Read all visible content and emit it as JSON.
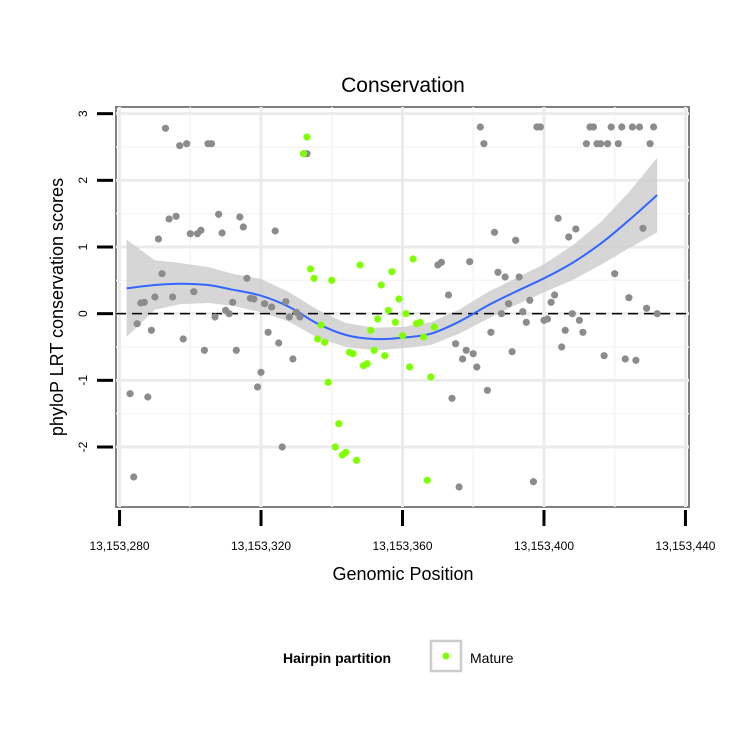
{
  "chart_data": {
    "type": "scatter",
    "title": "Conservation",
    "xlabel": "Genomic Position",
    "ylabel": "phyloP LRT conservation scores",
    "xlim": [
      13153279,
      13153441
    ],
    "ylim": [
      -2.9,
      3.1
    ],
    "x_ticks": [
      13153280,
      13153320,
      13153360,
      13153400,
      13153440
    ],
    "x_tick_labels": [
      "13,153,280",
      "13,153,320",
      "13,153,360",
      "13,153,400",
      "13,153,440"
    ],
    "y_ticks": [
      -2,
      -1,
      0,
      1,
      2,
      3
    ],
    "y_tick_labels": [
      "-2",
      "-1",
      "0",
      "1",
      "2",
      "3"
    ],
    "grid": true,
    "reference_line": {
      "y": 0,
      "style": "dashed"
    },
    "legend": {
      "title": "Hairpin partition",
      "entries": [
        {
          "label": "Mature",
          "color": "#80ff00"
        }
      ],
      "position": "bottom"
    },
    "colors": {
      "other": "#8c8c8c",
      "mature": "#80ff00",
      "smooth": "#3366ff",
      "ribbon": "#cccccc"
    },
    "series": [
      {
        "name": "Other",
        "points": [
          [
            13153283,
            -1.2
          ],
          [
            13153284,
            -2.45
          ],
          [
            13153285,
            -0.15
          ],
          [
            13153286,
            0.16
          ],
          [
            13153287,
            0.17
          ],
          [
            13153288,
            -1.25
          ],
          [
            13153289,
            -0.25
          ],
          [
            13153290,
            0.25
          ],
          [
            13153291,
            1.12
          ],
          [
            13153292,
            0.6
          ],
          [
            13153293,
            2.78
          ],
          [
            13153294,
            1.42
          ],
          [
            13153295,
            0.25
          ],
          [
            13153296,
            1.46
          ],
          [
            13153297,
            2.52
          ],
          [
            13153298,
            -0.38
          ],
          [
            13153299,
            2.55
          ],
          [
            13153300,
            1.2
          ],
          [
            13153301,
            0.33
          ],
          [
            13153302,
            1.2
          ],
          [
            13153303,
            1.25
          ],
          [
            13153304,
            -0.55
          ],
          [
            13153305,
            2.55
          ],
          [
            13153306,
            2.55
          ],
          [
            13153307,
            -0.05
          ],
          [
            13153308,
            1.49
          ],
          [
            13153309,
            1.21
          ],
          [
            13153310,
            0.05
          ],
          [
            13153311,
            0.0
          ],
          [
            13153312,
            0.17
          ],
          [
            13153313,
            -0.55
          ],
          [
            13153314,
            1.45
          ],
          [
            13153315,
            1.3
          ],
          [
            13153316,
            0.53
          ],
          [
            13153317,
            0.23
          ],
          [
            13153318,
            0.22
          ],
          [
            13153319,
            -1.1
          ],
          [
            13153320,
            -0.88
          ],
          [
            13153321,
            0.15
          ],
          [
            13153322,
            -0.28
          ],
          [
            13153323,
            0.1
          ],
          [
            13153324,
            1.24
          ],
          [
            13153325,
            -0.44
          ],
          [
            13153326,
            -2.0
          ],
          [
            13153327,
            0.18
          ],
          [
            13153328,
            -0.05
          ],
          [
            13153329,
            -0.68
          ],
          [
            13153330,
            0.02
          ],
          [
            13153331,
            -0.05
          ],
          [
            13153332,
            2.4
          ],
          [
            13153333,
            2.4
          ],
          [
            13153370,
            0.73
          ],
          [
            13153371,
            0.77
          ],
          [
            13153373,
            0.28
          ],
          [
            13153374,
            -1.27
          ],
          [
            13153375,
            -0.45
          ],
          [
            13153376,
            -2.6
          ],
          [
            13153377,
            -0.68
          ],
          [
            13153378,
            -0.55
          ],
          [
            13153379,
            0.78
          ],
          [
            13153380,
            -0.6
          ],
          [
            13153381,
            -0.8
          ],
          [
            13153382,
            2.8
          ],
          [
            13153383,
            2.55
          ],
          [
            13153384,
            -1.15
          ],
          [
            13153385,
            -0.28
          ],
          [
            13153386,
            1.22
          ],
          [
            13153387,
            0.62
          ],
          [
            13153388,
            0.0
          ],
          [
            13153389,
            0.55
          ],
          [
            13153390,
            0.15
          ],
          [
            13153391,
            -0.57
          ],
          [
            13153392,
            1.1
          ],
          [
            13153393,
            0.55
          ],
          [
            13153394,
            0.03
          ],
          [
            13153395,
            -0.13
          ],
          [
            13153396,
            0.2
          ],
          [
            13153397,
            -2.52
          ],
          [
            13153398,
            2.8
          ],
          [
            13153399,
            2.8
          ],
          [
            13153400,
            -0.1
          ],
          [
            13153401,
            -0.08
          ],
          [
            13153402,
            0.17
          ],
          [
            13153403,
            0.28
          ],
          [
            13153404,
            1.43
          ],
          [
            13153405,
            -0.5
          ],
          [
            13153406,
            -0.25
          ],
          [
            13153407,
            1.15
          ],
          [
            13153408,
            0.0
          ],
          [
            13153409,
            1.27
          ],
          [
            13153410,
            -0.1
          ],
          [
            13153411,
            -0.28
          ],
          [
            13153412,
            2.55
          ],
          [
            13153413,
            2.8
          ],
          [
            13153414,
            2.8
          ],
          [
            13153415,
            2.55
          ],
          [
            13153416,
            2.55
          ],
          [
            13153417,
            -0.63
          ],
          [
            13153418,
            2.55
          ],
          [
            13153419,
            2.8
          ],
          [
            13153420,
            0.6
          ],
          [
            13153421,
            2.55
          ],
          [
            13153422,
            2.8
          ],
          [
            13153423,
            -0.68
          ],
          [
            13153424,
            0.24
          ],
          [
            13153425,
            2.8
          ],
          [
            13153426,
            -0.7
          ],
          [
            13153427,
            2.8
          ],
          [
            13153428,
            1.28
          ],
          [
            13153429,
            0.08
          ],
          [
            13153430,
            2.55
          ],
          [
            13153431,
            2.8
          ],
          [
            13153432,
            0.0
          ]
        ]
      },
      {
        "name": "Mature",
        "points": [
          [
            13153332,
            2.4
          ],
          [
            13153333,
            2.65
          ],
          [
            13153334,
            0.67
          ],
          [
            13153335,
            0.53
          ],
          [
            13153336,
            -0.38
          ],
          [
            13153337,
            -0.17
          ],
          [
            13153338,
            -0.43
          ],
          [
            13153339,
            -1.03
          ],
          [
            13153340,
            0.5
          ],
          [
            13153341,
            -2.0
          ],
          [
            13153342,
            -1.65
          ],
          [
            13153343,
            -2.12
          ],
          [
            13153344,
            -2.08
          ],
          [
            13153345,
            -0.58
          ],
          [
            13153346,
            -0.6
          ],
          [
            13153347,
            -2.2
          ],
          [
            13153348,
            0.73
          ],
          [
            13153349,
            -0.78
          ],
          [
            13153350,
            -0.75
          ],
          [
            13153351,
            -0.25
          ],
          [
            13153352,
            -0.55
          ],
          [
            13153353,
            -0.08
          ],
          [
            13153354,
            0.43
          ],
          [
            13153355,
            -0.63
          ],
          [
            13153356,
            0.05
          ],
          [
            13153357,
            0.63
          ],
          [
            13153358,
            -0.13
          ],
          [
            13153359,
            0.22
          ],
          [
            13153360,
            -0.33
          ],
          [
            13153361,
            0.0
          ],
          [
            13153362,
            -0.8
          ],
          [
            13153363,
            0.82
          ],
          [
            13153364,
            -0.15
          ],
          [
            13153365,
            -0.13
          ],
          [
            13153366,
            -0.35
          ],
          [
            13153367,
            -2.5
          ],
          [
            13153368,
            -0.95
          ],
          [
            13153369,
            -0.2
          ]
        ]
      }
    ],
    "smooth": {
      "name": "Loess fit",
      "x": [
        13153282,
        13153290,
        13153297,
        13153305,
        13153312,
        13153320,
        13153328,
        13153336,
        13153344,
        13153352,
        13153360,
        13153368,
        13153376,
        13153384,
        13153392,
        13153400,
        13153408,
        13153416,
        13153424,
        13153432
      ],
      "y": [
        0.38,
        0.43,
        0.45,
        0.43,
        0.36,
        0.27,
        0.1,
        -0.15,
        -0.32,
        -0.38,
        -0.36,
        -0.3,
        -0.12,
        0.12,
        0.33,
        0.53,
        0.76,
        1.05,
        1.4,
        1.78
      ],
      "ci_lower": [
        -0.35,
        0.06,
        0.14,
        0.16,
        0.12,
        0.02,
        -0.12,
        -0.36,
        -0.5,
        -0.55,
        -0.52,
        -0.47,
        -0.3,
        -0.08,
        0.13,
        0.32,
        0.5,
        0.73,
        0.98,
        1.22
      ],
      "ci_upper": [
        1.11,
        0.8,
        0.76,
        0.7,
        0.6,
        0.52,
        0.32,
        0.06,
        -0.14,
        -0.21,
        -0.2,
        -0.13,
        0.06,
        0.32,
        0.53,
        0.74,
        1.02,
        1.37,
        1.82,
        2.34
      ]
    }
  }
}
